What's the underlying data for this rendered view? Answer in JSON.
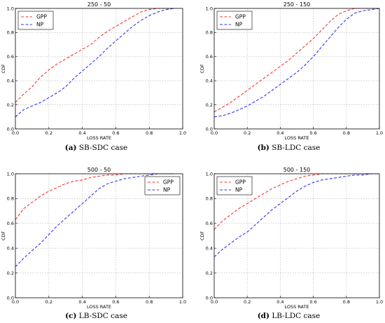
{
  "chart_data": [
    {
      "type": "line",
      "title": "250 - 50",
      "xlabel": "LOSS RATE",
      "ylabel": "CDF",
      "xlim": [
        0,
        1
      ],
      "ylim": [
        0,
        1
      ],
      "xticks": [
        "0.0",
        "0.2",
        "0.4",
        "0.6",
        "0.8",
        "1.0"
      ],
      "yticks": [
        "0.0",
        "0.2",
        "0.4",
        "0.6",
        "0.8",
        "1.0"
      ],
      "grid": true,
      "legend": "top-left",
      "caption_label": "(a)",
      "caption_text": "SB-SDC case",
      "series": [
        {
          "name": "GPP",
          "color": "#ff3333",
          "x": [
            0,
            0.05,
            0.1,
            0.15,
            0.2,
            0.25,
            0.3,
            0.35,
            0.4,
            0.45,
            0.5,
            0.55,
            0.6,
            0.65,
            0.7,
            0.75,
            0.8,
            0.85,
            0.9,
            0.95
          ],
          "y": [
            0.22,
            0.29,
            0.35,
            0.43,
            0.49,
            0.54,
            0.58,
            0.62,
            0.66,
            0.7,
            0.76,
            0.81,
            0.85,
            0.89,
            0.93,
            0.97,
            0.99,
            1.0,
            1.0,
            1.0
          ]
        },
        {
          "name": "NP",
          "color": "#3333ff",
          "x": [
            0,
            0.05,
            0.1,
            0.15,
            0.2,
            0.25,
            0.3,
            0.35,
            0.4,
            0.45,
            0.5,
            0.55,
            0.6,
            0.65,
            0.7,
            0.75,
            0.8,
            0.85,
            0.9,
            0.95
          ],
          "y": [
            0.1,
            0.16,
            0.19,
            0.22,
            0.26,
            0.3,
            0.35,
            0.42,
            0.48,
            0.54,
            0.6,
            0.67,
            0.73,
            0.79,
            0.85,
            0.9,
            0.94,
            0.97,
            0.99,
            1.0
          ]
        }
      ]
    },
    {
      "type": "line",
      "title": "250 - 150",
      "xlabel": "LOSS RATE",
      "ylabel": "CDF",
      "xlim": [
        0,
        1
      ],
      "ylim": [
        0,
        1
      ],
      "xticks": [
        "0.0",
        "0.2",
        "0.4",
        "0.6",
        "0.8",
        "1.0"
      ],
      "yticks": [
        "0.0",
        "0.2",
        "0.4",
        "0.6",
        "0.8",
        "1.0"
      ],
      "grid": true,
      "legend": "top-left",
      "caption_label": "(b)",
      "caption_text": "SB-LDC case",
      "series": [
        {
          "name": "GPP",
          "color": "#ff3333",
          "x": [
            0,
            0.05,
            0.1,
            0.15,
            0.2,
            0.25,
            0.3,
            0.35,
            0.4,
            0.45,
            0.5,
            0.55,
            0.6,
            0.65,
            0.7,
            0.75,
            0.8,
            0.85,
            0.9,
            0.95,
            1.0
          ],
          "y": [
            0.14,
            0.18,
            0.22,
            0.27,
            0.32,
            0.37,
            0.42,
            0.47,
            0.52,
            0.57,
            0.63,
            0.69,
            0.75,
            0.82,
            0.89,
            0.95,
            0.98,
            1.0,
            1.0,
            1.0,
            1.0
          ]
        },
        {
          "name": "NP",
          "color": "#3333ff",
          "x": [
            0,
            0.05,
            0.1,
            0.15,
            0.2,
            0.25,
            0.3,
            0.35,
            0.4,
            0.45,
            0.5,
            0.55,
            0.6,
            0.65,
            0.7,
            0.75,
            0.8,
            0.85,
            0.9,
            0.95,
            1.0
          ],
          "y": [
            0.1,
            0.11,
            0.13,
            0.16,
            0.19,
            0.23,
            0.27,
            0.32,
            0.37,
            0.42,
            0.47,
            0.53,
            0.6,
            0.68,
            0.76,
            0.84,
            0.91,
            0.96,
            0.98,
            0.99,
            1.0
          ]
        }
      ]
    },
    {
      "type": "line",
      "title": "500 - 50",
      "xlabel": "LOSS RATE",
      "ylabel": "CDF",
      "xlim": [
        0,
        1
      ],
      "ylim": [
        0,
        1
      ],
      "xticks": [
        "0.0",
        "0.2",
        "0.4",
        "0.6",
        "0.8",
        "1.0"
      ],
      "yticks": [
        "0.0",
        "0.2",
        "0.4",
        "0.6",
        "0.8",
        "1.0"
      ],
      "grid": true,
      "legend": "top-right",
      "caption_label": "(c)",
      "caption_text": "LB-SDC case",
      "series": [
        {
          "name": "GPP",
          "color": "#ff3333",
          "x": [
            0,
            0.05,
            0.1,
            0.15,
            0.2,
            0.25,
            0.3,
            0.35,
            0.4,
            0.45,
            0.5,
            0.55,
            0.6,
            0.65,
            0.7,
            0.8,
            0.9,
            0.95
          ],
          "y": [
            0.63,
            0.72,
            0.77,
            0.82,
            0.86,
            0.89,
            0.92,
            0.94,
            0.95,
            0.97,
            0.98,
            0.99,
            0.99,
            1.0,
            1.0,
            1.0,
            1.0,
            1.0
          ]
        },
        {
          "name": "NP",
          "color": "#3333ff",
          "x": [
            0,
            0.05,
            0.1,
            0.15,
            0.2,
            0.25,
            0.3,
            0.35,
            0.4,
            0.45,
            0.5,
            0.55,
            0.6,
            0.65,
            0.7,
            0.75,
            0.8,
            0.85,
            0.9,
            0.95
          ],
          "y": [
            0.25,
            0.32,
            0.38,
            0.44,
            0.51,
            0.58,
            0.64,
            0.7,
            0.76,
            0.82,
            0.88,
            0.92,
            0.94,
            0.96,
            0.97,
            0.98,
            0.99,
            1.0,
            1.0,
            1.0
          ]
        }
      ]
    },
    {
      "type": "line",
      "title": "500 - 150",
      "xlabel": "LOSS RATE",
      "ylabel": "CDF",
      "xlim": [
        0,
        1
      ],
      "ylim": [
        0,
        1
      ],
      "xticks": [
        "0.0",
        "0.2",
        "0.4",
        "0.6",
        "0.8",
        "1.0"
      ],
      "yticks": [
        "0.0",
        "0.2",
        "0.4",
        "0.6",
        "0.8",
        "1.0"
      ],
      "grid": true,
      "legend": "top-left",
      "caption_label": "(d)",
      "caption_text": "LB-LDC case",
      "series": [
        {
          "name": "GPP",
          "color": "#ff3333",
          "x": [
            0,
            0.05,
            0.1,
            0.15,
            0.2,
            0.25,
            0.3,
            0.35,
            0.4,
            0.45,
            0.5,
            0.55,
            0.6,
            0.65,
            0.7,
            0.8,
            0.9,
            1.0
          ],
          "y": [
            0.55,
            0.62,
            0.67,
            0.72,
            0.76,
            0.8,
            0.84,
            0.88,
            0.91,
            0.94,
            0.96,
            0.98,
            0.99,
            1.0,
            1.0,
            1.0,
            1.0,
            1.0
          ]
        },
        {
          "name": "NP",
          "color": "#3333ff",
          "x": [
            0,
            0.05,
            0.1,
            0.15,
            0.2,
            0.25,
            0.3,
            0.35,
            0.4,
            0.45,
            0.5,
            0.55,
            0.6,
            0.65,
            0.7,
            0.75,
            0.8,
            0.85,
            0.9,
            0.95,
            1.0
          ],
          "y": [
            0.33,
            0.39,
            0.44,
            0.49,
            0.53,
            0.59,
            0.65,
            0.71,
            0.76,
            0.81,
            0.86,
            0.9,
            0.93,
            0.95,
            0.96,
            0.97,
            0.98,
            0.99,
            0.99,
            1.0,
            1.0
          ]
        }
      ]
    }
  ]
}
